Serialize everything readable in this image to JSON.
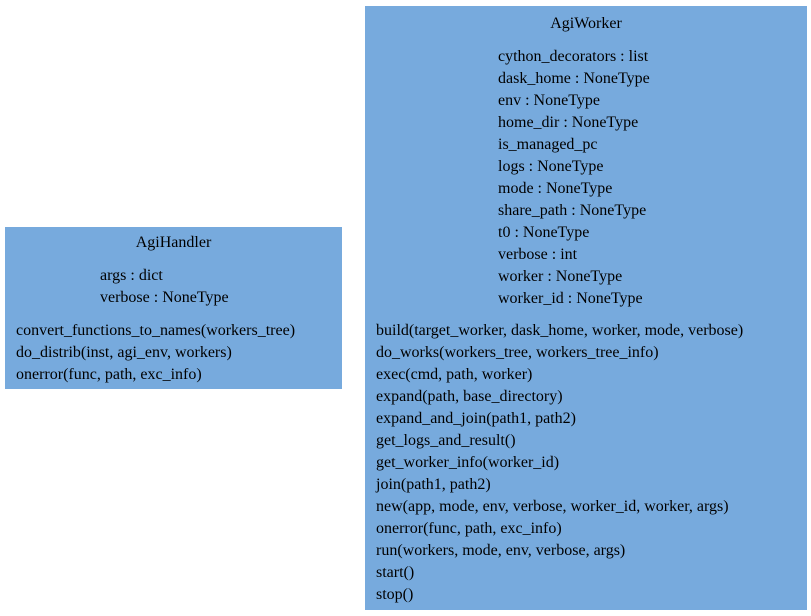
{
  "classes": [
    {
      "name": "AgiHandler",
      "attributes": [
        "args : dict",
        "verbose : NoneType"
      ],
      "methods": [
        "convert_functions_to_names(workers_tree)",
        "do_distrib(inst, agi_env, workers)",
        "onerror(func, path, exc_info)"
      ]
    },
    {
      "name": "AgiWorker",
      "attributes": [
        "cython_decorators : list",
        "dask_home : NoneType",
        "env : NoneType",
        "home_dir : NoneType",
        "is_managed_pc",
        "logs : NoneType",
        "mode : NoneType",
        "share_path : NoneType",
        "t0 : NoneType",
        "verbose : int",
        "worker : NoneType",
        "worker_id : NoneType"
      ],
      "methods": [
        "build(target_worker, dask_home, worker, mode, verbose)",
        "do_works(workers_tree, workers_tree_info)",
        "exec(cmd, path, worker)",
        "expand(path, base_directory)",
        "expand_and_join(path1, path2)",
        "get_logs_and_result()",
        "get_worker_info(worker_id)",
        "join(path1, path2)",
        "new(app, mode, env, verbose, worker_id, worker, args)",
        "onerror(func, path, exc_info)",
        "run(workers, mode, env, verbose, args)",
        "start()",
        "stop()"
      ]
    }
  ],
  "colors": {
    "class_fill": "#77aadd",
    "class_border": "#ffffff",
    "text": "#000000",
    "background": "#ffffff"
  }
}
